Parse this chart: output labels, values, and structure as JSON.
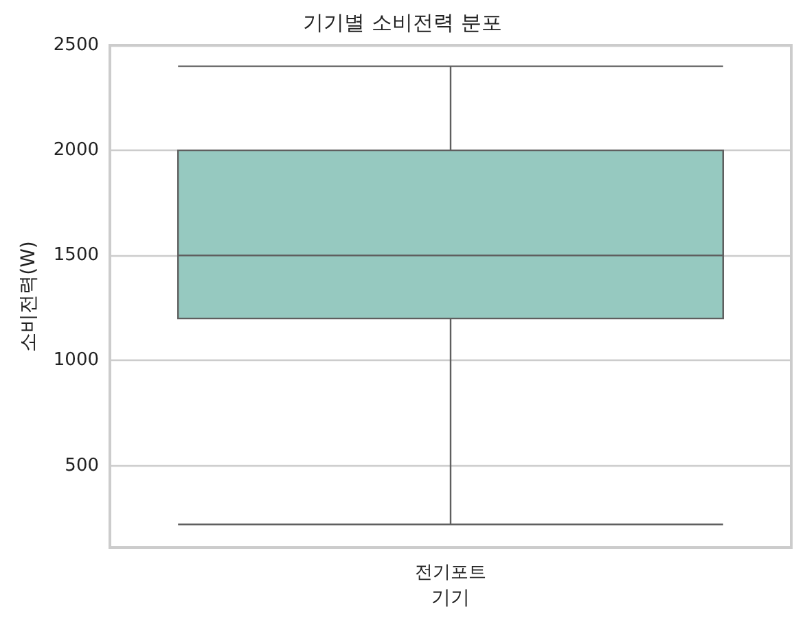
{
  "chart_data": {
    "type": "box",
    "title": "기기별 소비전력 분포",
    "xlabel": "기기",
    "ylabel": "소비전력(W)",
    "categories": [
      "전기포트"
    ],
    "series": [
      {
        "color": "#96c9c0",
        "boxes": [
          {
            "low": 220,
            "q1": 1200,
            "median": 1500,
            "q3": 2000,
            "high": 2400
          }
        ]
      }
    ],
    "ylim": [
      110,
      2500
    ],
    "yticks": [
      500,
      1000,
      1500,
      2000,
      2500
    ],
    "grid": "y"
  }
}
